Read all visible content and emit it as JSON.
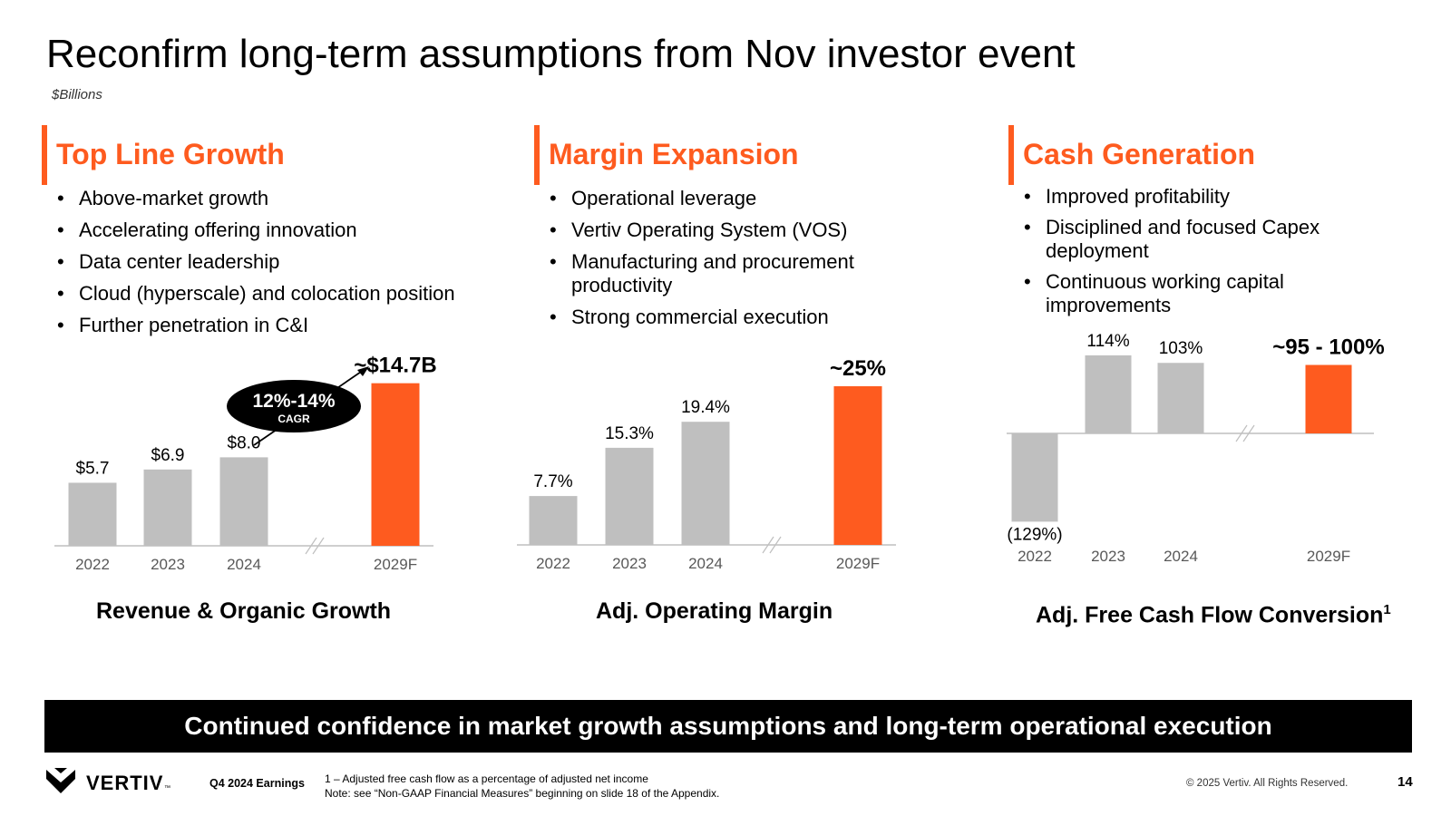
{
  "title": "Reconfirm long-term assumptions from Nov investor event",
  "subtitle": "$Billions",
  "colors": {
    "accent": "#FE5B1F",
    "bar_gray": "#BFBFBF",
    "axis": "#BFBFBF",
    "tick_text": "#595959"
  },
  "sections": [
    {
      "heading": "Top Line Growth",
      "bullets": [
        "Above-market growth",
        "Accelerating offering innovation",
        "Data center leadership",
        "Cloud (hyperscale) and colocation position",
        "Further penetration in C&I"
      ]
    },
    {
      "heading": "Margin Expansion",
      "bullets": [
        "Operational leverage",
        "Vertiv Operating System (VOS)",
        "Manufacturing and procurement productivity",
        "Strong commercial execution"
      ]
    },
    {
      "heading": "Cash Generation",
      "bullets": [
        "Improved profitability",
        "Disciplined and focused Capex deployment",
        "Continuous working capital improvements"
      ]
    }
  ],
  "chart_data": [
    {
      "type": "bar",
      "title": "Revenue & Organic Growth",
      "categories": [
        "2022",
        "2023",
        "2024",
        "2029F"
      ],
      "values": [
        5.7,
        6.9,
        8.0,
        14.7
      ],
      "labels": [
        "$5.7",
        "$6.9",
        "$8.0",
        "~$14.7B"
      ],
      "highlight": "2029F",
      "axis_break": true,
      "annotation": {
        "main": "12%-14%",
        "sub": "CAGR"
      }
    },
    {
      "type": "bar",
      "title": "Adj. Operating Margin",
      "categories": [
        "2022",
        "2023",
        "2024",
        "2029F"
      ],
      "values": [
        7.7,
        15.3,
        19.4,
        25
      ],
      "labels": [
        "7.7%",
        "15.3%",
        "19.4%",
        "~25%"
      ],
      "highlight": "2029F",
      "axis_break": true
    },
    {
      "type": "bar",
      "title": "Adj. Free Cash Flow Conversion",
      "title_sup": "1",
      "categories": [
        "2022",
        "2023",
        "2024",
        "2029F"
      ],
      "values": [
        -129,
        114,
        103,
        100
      ],
      "labels": [
        "(129%)",
        "114%",
        "103%",
        "~95 - 100%"
      ],
      "highlight": "2029F",
      "axis_break": true
    }
  ],
  "banner": "Continued confidence in market growth assumptions and long-term operational execution",
  "footer": {
    "logo_text": "VERTIV",
    "logo_tm": "™",
    "earnings": "Q4 2024 Earnings",
    "footnote_1": "1 – Adjusted free cash flow as a percentage of adjusted net income",
    "footnote_2": "Note: see “Non-GAAP Financial Measures” beginning on slide 18 of the Appendix.",
    "copyright": "© 2025 Vertiv. All Rights Reserved.",
    "page_number": "14"
  }
}
